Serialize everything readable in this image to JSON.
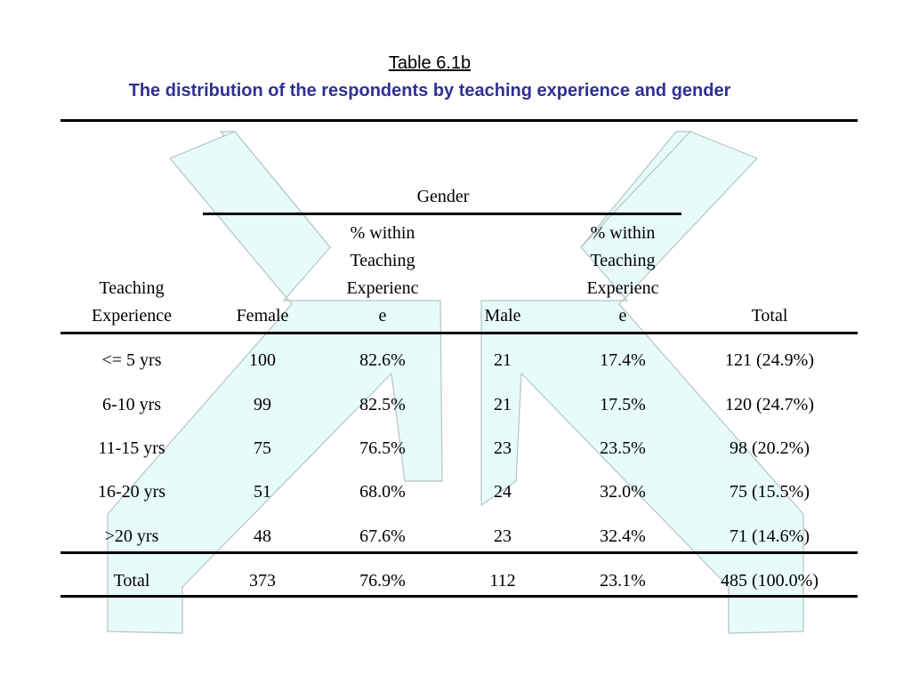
{
  "title": "Table 6.1b",
  "subtitle": "The distribution of the respondents by teaching experience and gender",
  "table": {
    "group_header": "Gender",
    "columns": [
      [
        "Teaching",
        "Experience"
      ],
      [
        "Female"
      ],
      [
        "% within",
        "Teaching",
        "Experienc",
        "e"
      ],
      [
        "Male"
      ],
      [
        "% within",
        "Teaching",
        "Experienc",
        "e"
      ],
      [
        "Total"
      ]
    ],
    "rows": [
      [
        "<= 5 yrs",
        "100",
        "82.6%",
        "21",
        "17.4%",
        "121 (24.9%)"
      ],
      [
        "6-10 yrs",
        "99",
        "82.5%",
        "21",
        "17.5%",
        "120 (24.7%)"
      ],
      [
        "11-15 yrs",
        "75",
        "76.5%",
        "23",
        "23.5%",
        "98 (20.2%)"
      ],
      [
        "16-20 yrs",
        "51",
        "68.0%",
        "24",
        "32.0%",
        "75 (15.5%)"
      ],
      [
        ">20 yrs",
        "48",
        "67.6%",
        "23",
        "32.4%",
        "71 (14.6%)"
      ]
    ],
    "total_row": [
      "Total",
      "373",
      "76.9%",
      "112",
      "23.1%",
      "485 (100.0%)"
    ]
  },
  "colors": {
    "subtitle": "#2e3192",
    "arrow_fill": "#e8fbfb",
    "arrow_stroke": "#b4c4c4"
  }
}
